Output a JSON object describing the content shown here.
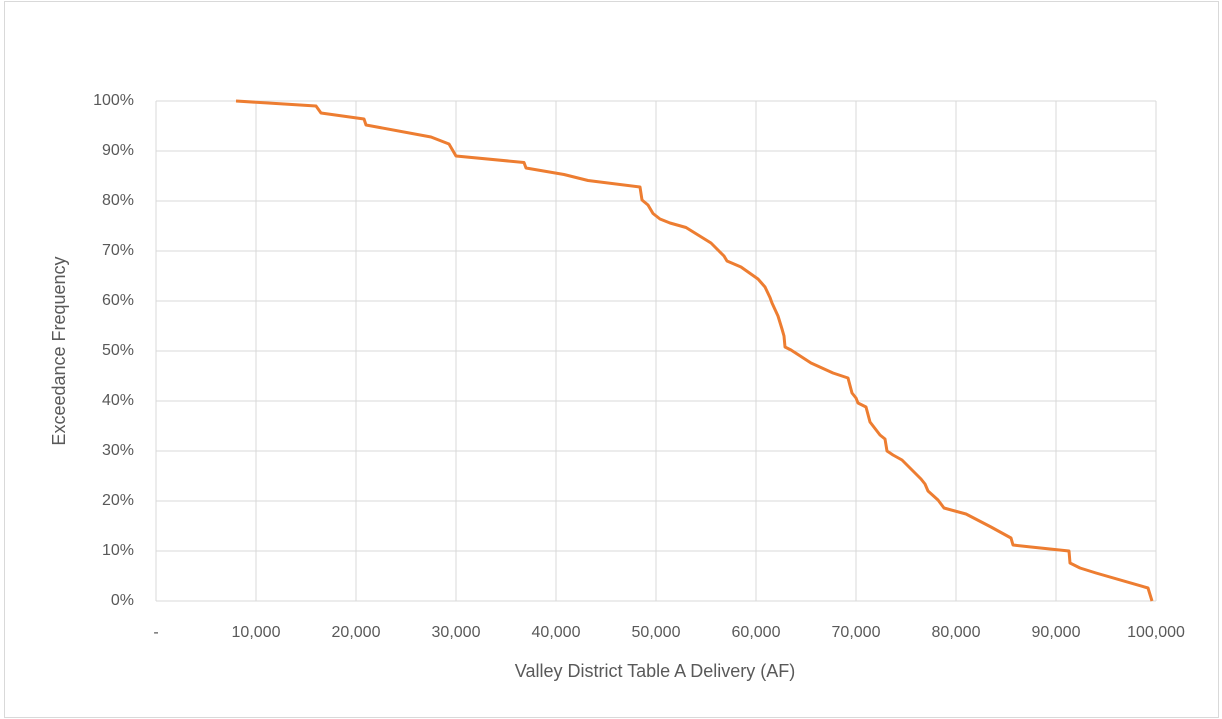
{
  "chart_data": {
    "type": "line",
    "xlabel": "Valley District Table A Delivery (AF)",
    "ylabel": "Exceedance Frequency",
    "color": "#ed7d31",
    "grid": true,
    "xlim": [
      0,
      100000
    ],
    "ylim": [
      0,
      100
    ],
    "xticks": [
      {
        "value": 0,
        "label": "-"
      },
      {
        "value": 10000,
        "label": "10,000"
      },
      {
        "value": 20000,
        "label": "20,000"
      },
      {
        "value": 30000,
        "label": "30,000"
      },
      {
        "value": 40000,
        "label": "40,000"
      },
      {
        "value": 50000,
        "label": "50,000"
      },
      {
        "value": 60000,
        "label": "60,000"
      },
      {
        "value": 70000,
        "label": "70,000"
      },
      {
        "value": 80000,
        "label": "80,000"
      },
      {
        "value": 90000,
        "label": "90,000"
      },
      {
        "value": 100000,
        "label": "100,000"
      }
    ],
    "yticks": [
      {
        "value": 0,
        "label": "0%"
      },
      {
        "value": 10,
        "label": "10%"
      },
      {
        "value": 20,
        "label": "20%"
      },
      {
        "value": 30,
        "label": "30%"
      },
      {
        "value": 40,
        "label": "40%"
      },
      {
        "value": 50,
        "label": "50%"
      },
      {
        "value": 60,
        "label": "60%"
      },
      {
        "value": 70,
        "label": "70%"
      },
      {
        "value": 80,
        "label": "80%"
      },
      {
        "value": 90,
        "label": "90%"
      },
      {
        "value": 100,
        "label": "100%"
      }
    ],
    "x": [
      8000,
      16000,
      16500,
      20800,
      21000,
      27500,
      29300,
      30000,
      36800,
      37000,
      40800,
      43200,
      48400,
      48600,
      49200,
      49700,
      50400,
      51400,
      53000,
      55500,
      56800,
      57100,
      58500,
      60200,
      60900,
      61400,
      61600,
      62200,
      62600,
      62800,
      62900,
      63500,
      65500,
      67700,
      69200,
      69600,
      70000,
      70200,
      71000,
      71400,
      72400,
      72900,
      73100,
      73700,
      74600,
      75600,
      76500,
      76900,
      77200,
      78200,
      78800,
      81000,
      83500,
      85500,
      85700,
      87500,
      91300,
      91400,
      92400,
      94000,
      99200,
      99600
    ],
    "values": [
      100,
      99,
      97.6,
      96.4,
      95.2,
      92.8,
      91.4,
      89,
      87.7,
      86.6,
      85.3,
      84.1,
      82.8,
      80.2,
      79.2,
      77.5,
      76.4,
      75.6,
      74.7,
      71.6,
      69,
      68,
      66.8,
      64.4,
      62.8,
      60.7,
      59.6,
      57,
      54.4,
      53,
      50.8,
      50.2,
      47.6,
      45.6,
      44.6,
      41.6,
      40.6,
      39.6,
      38.8,
      35.8,
      33.2,
      32.4,
      30,
      29.2,
      28.2,
      26.2,
      24.4,
      23.4,
      22,
      20.2,
      18.6,
      17.4,
      14.8,
      12.6,
      11.2,
      10.8,
      10,
      7.6,
      6.6,
      5.6,
      2.6,
      0
    ]
  }
}
